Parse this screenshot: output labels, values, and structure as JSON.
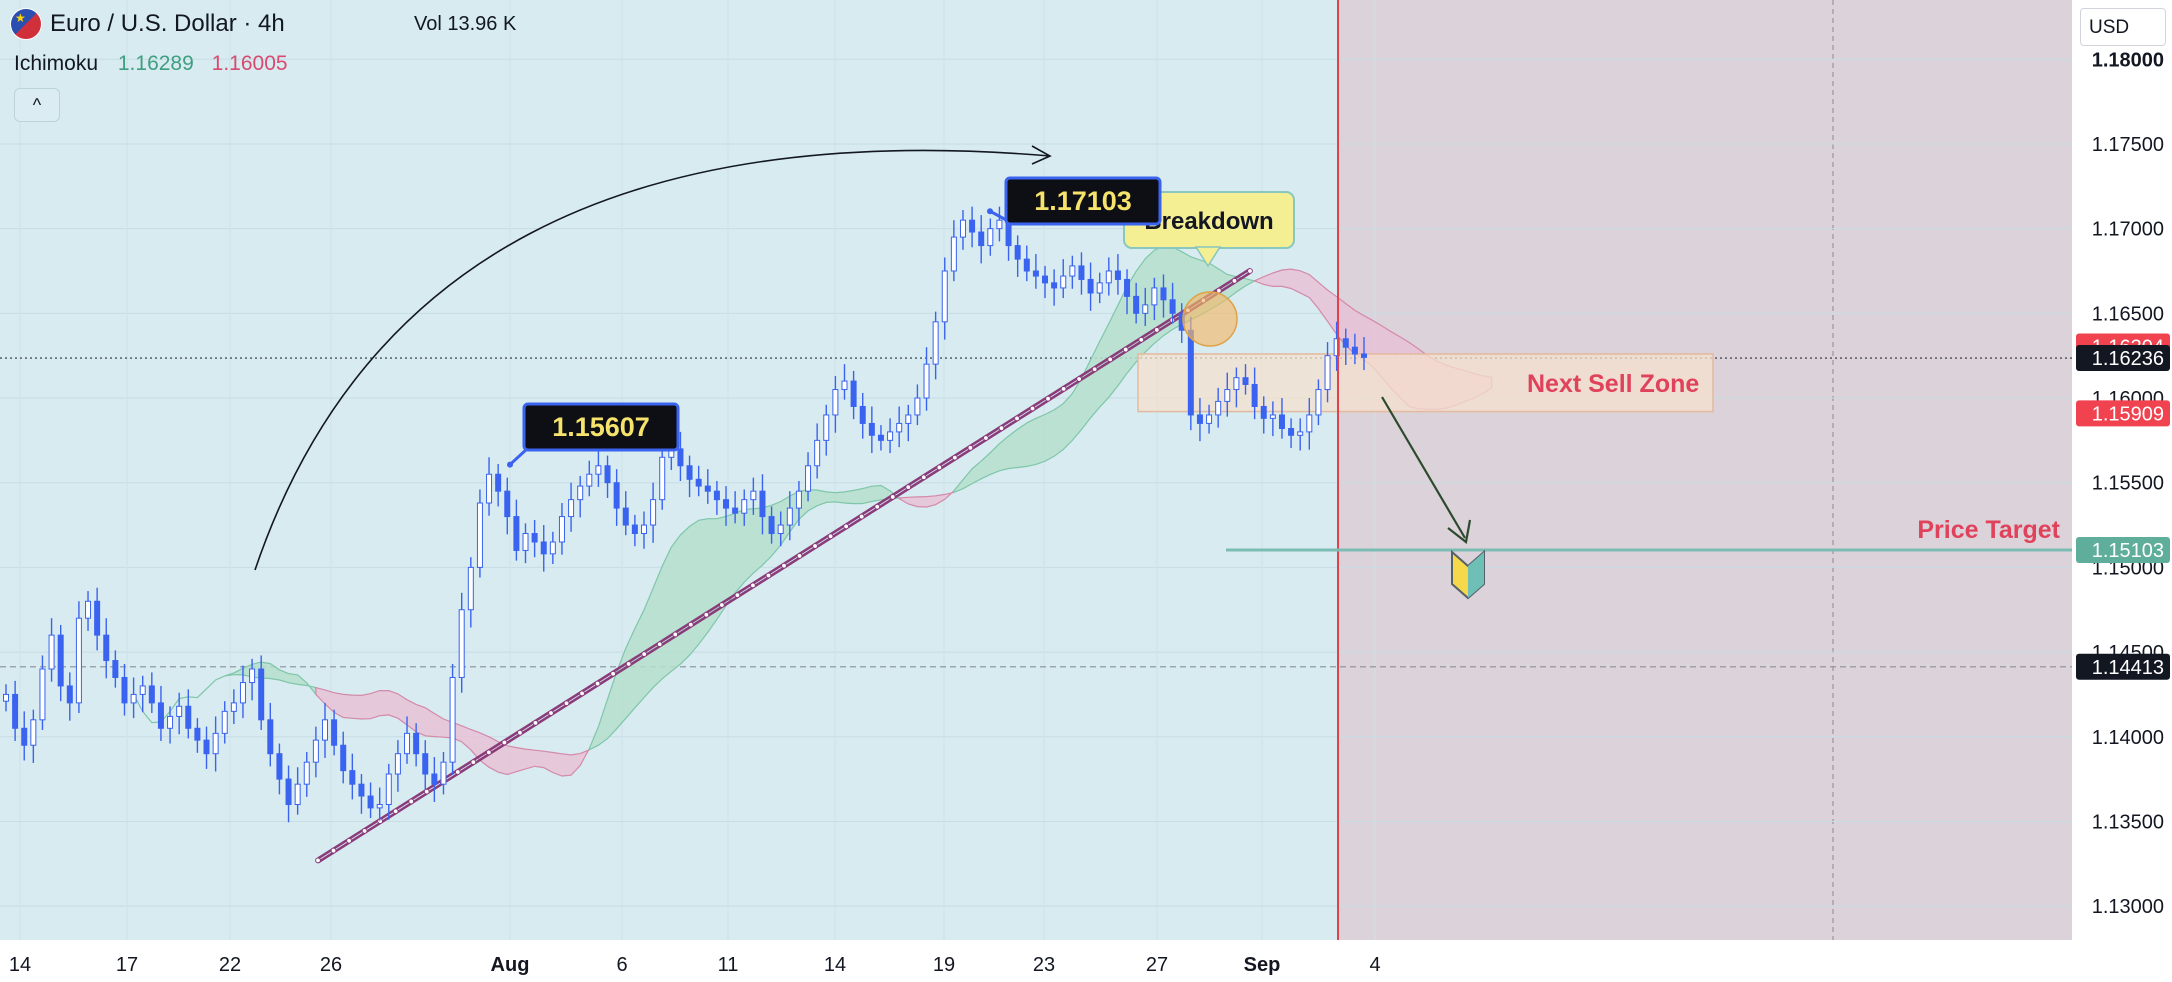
{
  "header": {
    "symbol_title": "Euro / U.S. Dollar · 4h",
    "volume_label": "Vol",
    "volume_value": "13.96 K",
    "indicator_name": "Ichimoku",
    "indicator_value_1": "1.16289",
    "indicator_value_2": "1.16005",
    "collapse_icon": "chevron-up-icon",
    "collapse_glyph": "^"
  },
  "axis_currency": "USD",
  "colors": {
    "chart_bg": "#d7ebf1",
    "future_zone": "#dcd2d9",
    "candle": "#3a63f0",
    "cloud_bull": "#b6dfcc",
    "cloud_bear": "#e7c2d6",
    "trendline": "#8a3b7a",
    "sell_zone": "#f4e0cc",
    "sell_text": "#e0425b",
    "target_line": "#7bbcb4",
    "now_line": "#e2424b"
  },
  "chart_data": {
    "type": "candlestick",
    "ylim": [
      1.128,
      1.1835
    ],
    "y_ticks": [
      "1.18000",
      "1.17500",
      "1.17000",
      "1.16500",
      "1.16000",
      "1.15500",
      "1.15000",
      "1.14500",
      "1.14000",
      "1.13500",
      "1.13000"
    ],
    "x_ticks": [
      "14",
      "17",
      "22",
      "26",
      "Aug",
      "6",
      "11",
      "14",
      "19",
      "23",
      "27",
      "Sep",
      "4"
    ],
    "price_tags": [
      {
        "value": "1.16304",
        "color": "#f0424f"
      },
      {
        "value": "1.16236",
        "color": "#131722"
      },
      {
        "value": "1.15909",
        "color": "#f0424f"
      },
      {
        "value": "1.15103",
        "color": "#5fae9b"
      },
      {
        "value": "1.14413",
        "color": "#131722"
      }
    ],
    "callouts": {
      "high_1": "1.15607",
      "high_2": "1.17103",
      "breakdown": "Breakdown"
    },
    "zone_label": "Next Sell Zone",
    "sell_zone": {
      "top": 1.1626,
      "bottom": 1.1592
    },
    "target_label": "Price Target",
    "target_price": 1.15103,
    "current_price": 1.16236,
    "prior_level": 1.14413,
    "trendline": {
      "from": [
        0,
        1.1327
      ],
      "to": [
        1,
        1.1675
      ]
    },
    "closes": [
      1.1425,
      1.1405,
      1.1395,
      1.141,
      1.144,
      1.146,
      1.143,
      1.142,
      1.147,
      1.148,
      1.146,
      1.1445,
      1.1435,
      1.142,
      1.1425,
      1.143,
      1.142,
      1.1405,
      1.1412,
      1.1418,
      1.1405,
      1.1398,
      1.139,
      1.1402,
      1.1415,
      1.142,
      1.1432,
      1.144,
      1.141,
      1.139,
      1.1375,
      1.136,
      1.1372,
      1.1385,
      1.1398,
      1.141,
      1.1395,
      1.138,
      1.1372,
      1.1365,
      1.1358,
      1.136,
      1.1378,
      1.139,
      1.1402,
      1.139,
      1.1378,
      1.1372,
      1.1385,
      1.1435,
      1.1475,
      1.15,
      1.1538,
      1.1555,
      1.1545,
      1.153,
      1.151,
      1.152,
      1.1515,
      1.1508,
      1.1515,
      1.153,
      1.154,
      1.1548,
      1.1555,
      1.156,
      1.155,
      1.1535,
      1.1525,
      1.152,
      1.1525,
      1.154,
      1.1565,
      1.157,
      1.156,
      1.1552,
      1.1548,
      1.1545,
      1.154,
      1.1535,
      1.1532,
      1.154,
      1.1545,
      1.153,
      1.152,
      1.1525,
      1.1535,
      1.1545,
      1.156,
      1.1575,
      1.159,
      1.1605,
      1.161,
      1.1595,
      1.1585,
      1.1578,
      1.1575,
      1.158,
      1.1585,
      1.159,
      1.16,
      1.162,
      1.1645,
      1.1675,
      1.1695,
      1.1705,
      1.1698,
      1.169,
      1.17,
      1.1705,
      1.169,
      1.1682,
      1.1675,
      1.1672,
      1.1668,
      1.1665,
      1.1672,
      1.1678,
      1.167,
      1.1662,
      1.1668,
      1.1675,
      1.167,
      1.166,
      1.165,
      1.1655,
      1.1665,
      1.1658,
      1.165,
      1.164,
      1.159,
      1.1585,
      1.159,
      1.1598,
      1.1605,
      1.1612,
      1.1608,
      1.1595,
      1.1588,
      1.159,
      1.1582,
      1.1578,
      1.158,
      1.159,
      1.1605,
      1.1625,
      1.1635,
      1.163,
      1.1626,
      1.1624
    ]
  }
}
